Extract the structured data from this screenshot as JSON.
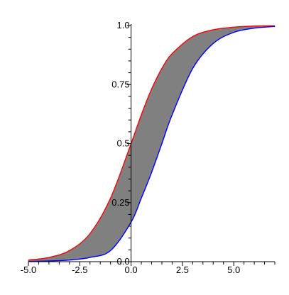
{
  "chart_data": {
    "type": "area",
    "title": "",
    "xlabel": "",
    "ylabel": "",
    "xlim": [
      -5.0,
      7.0
    ],
    "ylim": [
      0.0,
      1.0
    ],
    "grid": false,
    "x_ticks": [
      {
        "value": -5.0,
        "label": "-5.0"
      },
      {
        "value": -2.5,
        "label": "-2.5"
      },
      {
        "value": 0.0,
        "label": "0.0"
      },
      {
        "value": 2.5,
        "label": "2.5"
      },
      {
        "value": 5.0,
        "label": "5.0"
      }
    ],
    "y_ticks": [
      {
        "value": 0.0,
        "label": "0.0"
      },
      {
        "value": 0.25,
        "label": "0.25"
      },
      {
        "value": 0.5,
        "label": "0.5"
      },
      {
        "value": 0.75,
        "label": "0.75"
      },
      {
        "value": 1.0,
        "label": "1.0"
      }
    ],
    "x": [
      -5.0,
      -4.0,
      -3.0,
      -2.0,
      -1.0,
      0.0,
      0.5,
      1.0,
      1.5,
      2.0,
      3.0,
      4.0,
      5.0,
      6.0,
      7.0
    ],
    "series": [
      {
        "color": "#ff0000",
        "values": [
          0.007,
          0.018,
          0.047,
          0.119,
          0.269,
          0.5,
          0.622,
          0.731,
          0.818,
          0.881,
          0.953,
          0.982,
          0.993,
          0.998,
          0.999
        ]
      },
      {
        "color": "#0000ff",
        "values": [
          0.001,
          0.003,
          0.007,
          0.018,
          0.047,
          0.167,
          0.269,
          0.378,
          0.5,
          0.622,
          0.818,
          0.924,
          0.971,
          0.989,
          0.996
        ]
      }
    ],
    "fill_between": {
      "color": "#808080"
    }
  }
}
